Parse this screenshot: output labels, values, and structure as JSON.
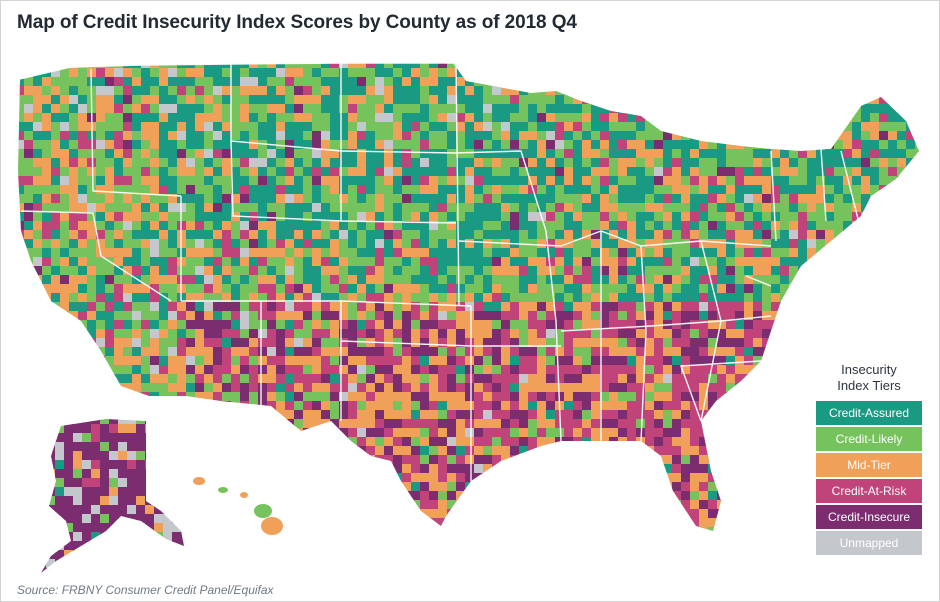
{
  "title": "Map of Credit Insecurity Index Scores by County as of 2018 Q4",
  "source": "Source: FRBNY Consumer Credit Panel/Equifax",
  "legend": {
    "title_line1": "Insecurity",
    "title_line2": "Index Tiers",
    "tiers": [
      {
        "label": "Credit-Assured",
        "color": "#1a9a82"
      },
      {
        "label": "Credit-Likely",
        "color": "#76c35e"
      },
      {
        "label": "Mid-Tier",
        "color": "#f0a059"
      },
      {
        "label": "Credit-At-Risk",
        "color": "#c0447a"
      },
      {
        "label": "Credit-Insecure",
        "color": "#7b2d6f"
      },
      {
        "label": "Unmapped",
        "color": "#c4c7cc"
      }
    ]
  },
  "regions": {
    "west": {
      "tier_weights": [
        0.18,
        0.34,
        0.3,
        0.1,
        0.03,
        0.05
      ]
    },
    "north": {
      "tier_weights": [
        0.42,
        0.28,
        0.16,
        0.06,
        0.02,
        0.06
      ]
    },
    "southwest": {
      "tier_weights": [
        0.05,
        0.12,
        0.3,
        0.28,
        0.22,
        0.03
      ]
    },
    "south": {
      "tier_weights": [
        0.05,
        0.1,
        0.32,
        0.3,
        0.22,
        0.01
      ]
    },
    "midwest_east": {
      "tier_weights": [
        0.34,
        0.3,
        0.22,
        0.1,
        0.03,
        0.01
      ]
    },
    "northeast": {
      "tier_weights": [
        0.36,
        0.36,
        0.18,
        0.07,
        0.02,
        0.01
      ]
    },
    "alaska": {
      "tier_weights": [
        0.02,
        0.06,
        0.06,
        0.1,
        0.62,
        0.14
      ]
    },
    "hawaii": {
      "tier_weights": [
        0.0,
        0.45,
        0.55,
        0.0,
        0.0,
        0.0
      ]
    }
  }
}
